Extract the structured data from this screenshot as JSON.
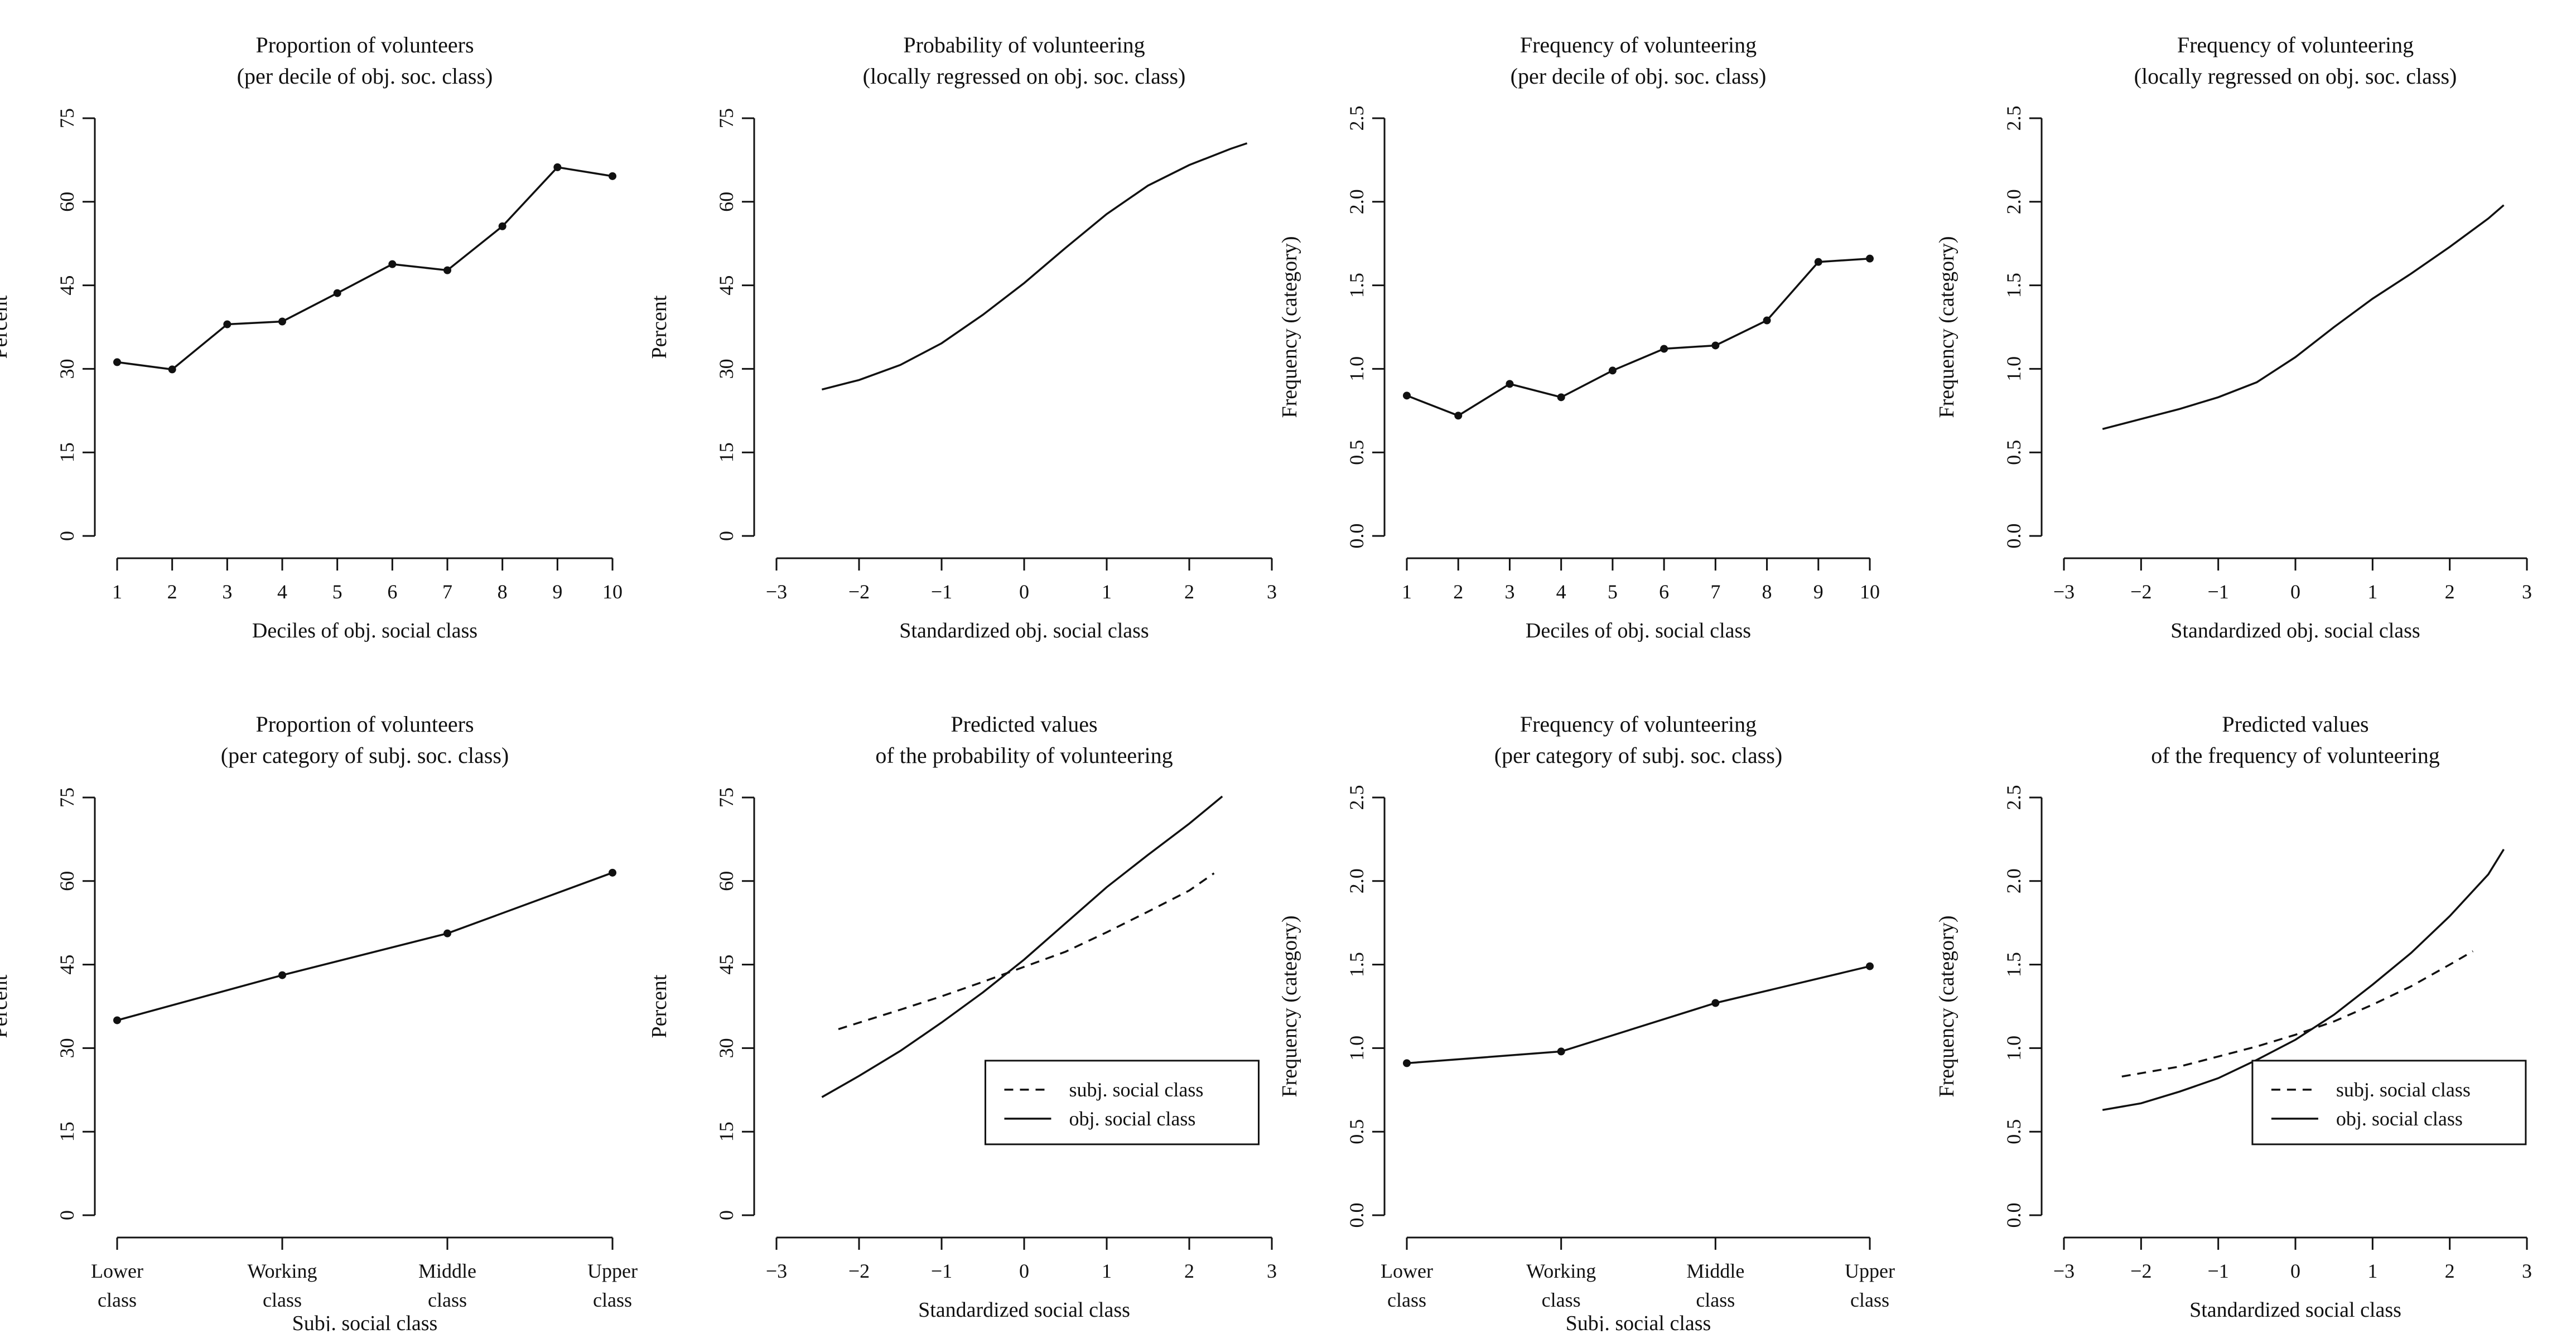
{
  "chart_data": [
    {
      "type": "line",
      "title": [
        "Proportion of volunteers",
        "(per decile of obj. soc. class)"
      ],
      "xlabel": "Deciles of obj. social class",
      "ylabel": "Percent",
      "xaxis": "numeric",
      "xlim": [
        1,
        10
      ],
      "xticks": [
        1,
        2,
        3,
        4,
        5,
        6,
        7,
        8,
        9,
        10
      ],
      "ylim": [
        0,
        75
      ],
      "yticks": [
        0,
        15,
        30,
        45,
        60,
        75
      ],
      "series": [
        {
          "style": "solid",
          "markers": true,
          "x": [
            1,
            2,
            3,
            4,
            5,
            6,
            7,
            8,
            9,
            10
          ],
          "y": [
            31.2,
            29.9,
            38.0,
            38.5,
            43.6,
            48.8,
            47.7,
            55.6,
            66.2,
            64.6
          ]
        }
      ]
    },
    {
      "type": "line",
      "title": [
        "Probability of volunteering",
        "(locally regressed on obj. soc. class)"
      ],
      "xlabel": "Standardized obj. social class",
      "ylabel": "Percent",
      "xaxis": "numeric",
      "xlim": [
        -3,
        3
      ],
      "xticks": [
        -3,
        -2,
        -1,
        0,
        1,
        2,
        3
      ],
      "xticklabels": [
        "−3",
        "−2",
        "−1",
        "0",
        "1",
        "2",
        "3"
      ],
      "ylim": [
        0,
        75
      ],
      "yticks": [
        0,
        15,
        30,
        45,
        60,
        75
      ],
      "series": [
        {
          "style": "solid",
          "markers": false,
          "x": [
            -2.45,
            -2.0,
            -1.5,
            -1.0,
            -0.5,
            0.0,
            0.5,
            1.0,
            1.5,
            2.0,
            2.5,
            2.7
          ],
          "y": [
            26.3,
            28.0,
            30.7,
            34.6,
            39.7,
            45.4,
            51.7,
            57.8,
            62.9,
            66.6,
            69.5,
            70.5
          ]
        }
      ]
    },
    {
      "type": "line",
      "title": [
        "Frequency of volunteering",
        "(per decile of obj. soc. class)"
      ],
      "xlabel": "Deciles of obj. social class",
      "ylabel": "Frequency (category)",
      "xaxis": "numeric",
      "xlim": [
        1,
        10
      ],
      "xticks": [
        1,
        2,
        3,
        4,
        5,
        6,
        7,
        8,
        9,
        10
      ],
      "ylim": [
        0,
        2.5
      ],
      "yticks": [
        0,
        0.5,
        1.0,
        1.5,
        2.0,
        2.5
      ],
      "yticklabels": [
        "0.0",
        "0.5",
        "1.0",
        "1.5",
        "2.0",
        "2.5"
      ],
      "series": [
        {
          "style": "solid",
          "markers": true,
          "x": [
            1,
            2,
            3,
            4,
            5,
            6,
            7,
            8,
            9,
            10
          ],
          "y": [
            0.84,
            0.72,
            0.91,
            0.83,
            0.99,
            1.12,
            1.14,
            1.29,
            1.64,
            1.66
          ]
        }
      ]
    },
    {
      "type": "line",
      "title": [
        "Frequency of volunteering",
        "(locally regressed on obj. soc. class)"
      ],
      "xlabel": "Standardized obj. social class",
      "ylabel": "Frequency (category)",
      "xaxis": "numeric",
      "xlim": [
        -3,
        3
      ],
      "xticks": [
        -3,
        -2,
        -1,
        0,
        1,
        2,
        3
      ],
      "xticklabels": [
        "−3",
        "−2",
        "−1",
        "0",
        "1",
        "2",
        "3"
      ],
      "ylim": [
        0,
        2.5
      ],
      "yticks": [
        0,
        0.5,
        1.0,
        1.5,
        2.0,
        2.5
      ],
      "yticklabels": [
        "0.0",
        "0.5",
        "1.0",
        "1.5",
        "2.0",
        "2.5"
      ],
      "series": [
        {
          "style": "solid",
          "markers": false,
          "x": [
            -2.5,
            -2.0,
            -1.5,
            -1.0,
            -0.5,
            0.0,
            0.5,
            1.0,
            1.5,
            2.0,
            2.5,
            2.7
          ],
          "y": [
            0.64,
            0.7,
            0.76,
            0.83,
            0.92,
            1.07,
            1.25,
            1.42,
            1.57,
            1.73,
            1.9,
            1.98
          ]
        }
      ]
    },
    {
      "type": "line",
      "title": [
        "Proportion of volunteers",
        "(per category of subj. soc. class)"
      ],
      "xlabel": "Subj. social class",
      "ylabel": "Percent",
      "xaxis": "categorical",
      "categories": [
        [
          "Lower",
          "class"
        ],
        [
          "Working",
          "class"
        ],
        [
          "Middle",
          "class"
        ],
        [
          "Upper",
          "class"
        ]
      ],
      "ylim": [
        0,
        75
      ],
      "yticks": [
        0,
        15,
        30,
        45,
        60,
        75
      ],
      "series": [
        {
          "style": "solid",
          "markers": true,
          "values": [
            35.0,
            43.1,
            50.6,
            61.5
          ]
        }
      ]
    },
    {
      "type": "line",
      "title": [
        "Predicted values",
        "of the probability of volunteering"
      ],
      "xlabel": "Standardized social class",
      "ylabel": "Percent",
      "xaxis": "numeric",
      "xlim": [
        -3,
        3
      ],
      "xticks": [
        -3,
        -2,
        -1,
        0,
        1,
        2,
        3
      ],
      "xticklabels": [
        "−3",
        "−2",
        "−1",
        "0",
        "1",
        "2",
        "3"
      ],
      "ylim": [
        0,
        75
      ],
      "yticks": [
        0,
        15,
        30,
        45,
        60,
        75
      ],
      "legend": {
        "position": "bottom-right",
        "entries": [
          "subj. social class",
          "obj. social class"
        ]
      },
      "series": [
        {
          "name": "subj. social class",
          "style": "dashed",
          "markers": false,
          "x": [
            -2.25,
            -1.5,
            -1.0,
            -0.5,
            0.0,
            0.5,
            1.0,
            1.5,
            2.0,
            2.3
          ],
          "y": [
            33.4,
            36.9,
            39.3,
            41.9,
            44.6,
            47.3,
            50.8,
            54.5,
            58.3,
            61.4
          ]
        },
        {
          "name": "obj. social class",
          "style": "solid",
          "markers": false,
          "x": [
            -2.45,
            -2.0,
            -1.5,
            -1.0,
            -0.5,
            0.0,
            0.5,
            1.0,
            1.5,
            2.0,
            2.4
          ],
          "y": [
            21.2,
            25.0,
            29.5,
            34.6,
            40.0,
            45.9,
            52.4,
            58.9,
            64.7,
            70.3,
            75.2
          ]
        }
      ]
    },
    {
      "type": "line",
      "title": [
        "Frequency of volunteering",
        "(per category of subj. soc. class)"
      ],
      "xlabel": "Subj. social class",
      "ylabel": "Frequency (category)",
      "xaxis": "categorical",
      "categories": [
        [
          "Lower",
          "class"
        ],
        [
          "Working",
          "class"
        ],
        [
          "Middle",
          "class"
        ],
        [
          "Upper",
          "class"
        ]
      ],
      "ylim": [
        0,
        2.5
      ],
      "yticks": [
        0,
        0.5,
        1.0,
        1.5,
        2.0,
        2.5
      ],
      "yticklabels": [
        "0.0",
        "0.5",
        "1.0",
        "1.5",
        "2.0",
        "2.5"
      ],
      "series": [
        {
          "style": "solid",
          "markers": true,
          "values": [
            0.91,
            0.98,
            1.27,
            1.49
          ]
        }
      ]
    },
    {
      "type": "line",
      "title": [
        "Predicted values",
        "of the frequency of volunteering"
      ],
      "xlabel": "Standardized social class",
      "ylabel": "Frequency (category)",
      "xaxis": "numeric",
      "xlim": [
        -3,
        3
      ],
      "xticks": [
        -3,
        -2,
        -1,
        0,
        1,
        2,
        3
      ],
      "xticklabels": [
        "−3",
        "−2",
        "−1",
        "0",
        "1",
        "2",
        "3"
      ],
      "ylim": [
        0,
        2.5
      ],
      "yticks": [
        0,
        0.5,
        1.0,
        1.5,
        2.0,
        2.5
      ],
      "yticklabels": [
        "0.0",
        "0.5",
        "1.0",
        "1.5",
        "2.0",
        "2.5"
      ],
      "legend": {
        "position": "bottom-right",
        "entries": [
          "subj. social class",
          "obj. social class"
        ]
      },
      "series": [
        {
          "name": "subj. social class",
          "style": "dashed",
          "markers": false,
          "x": [
            -2.25,
            -1.5,
            -1.0,
            -0.5,
            0.0,
            0.5,
            1.0,
            1.5,
            2.0,
            2.3
          ],
          "y": [
            0.83,
            0.89,
            0.95,
            1.01,
            1.08,
            1.16,
            1.26,
            1.37,
            1.5,
            1.58
          ]
        },
        {
          "name": "obj. social class",
          "style": "solid",
          "markers": false,
          "x": [
            -2.5,
            -2.0,
            -1.5,
            -1.0,
            -0.5,
            0.0,
            0.5,
            1.0,
            1.5,
            2.0,
            2.5,
            2.7
          ],
          "y": [
            0.63,
            0.67,
            0.74,
            0.82,
            0.93,
            1.05,
            1.2,
            1.38,
            1.57,
            1.79,
            2.04,
            2.19
          ]
        }
      ]
    }
  ]
}
